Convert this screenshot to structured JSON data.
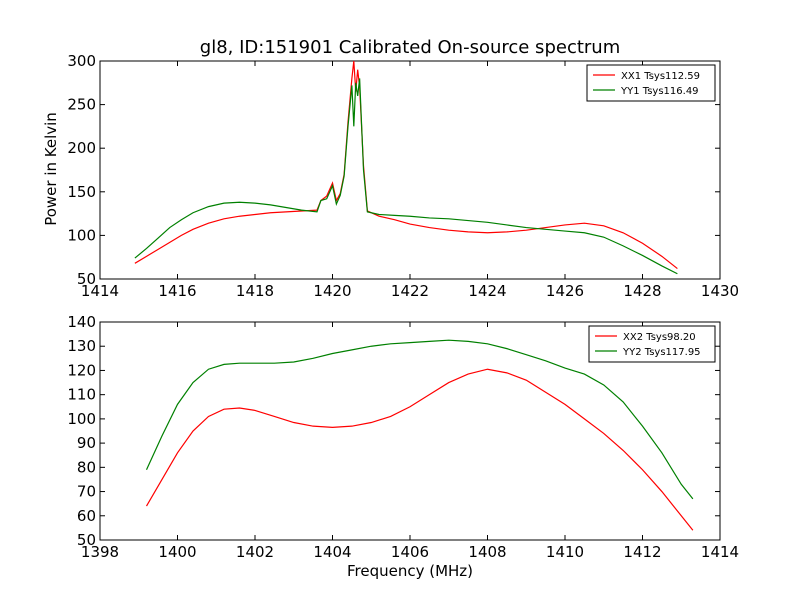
{
  "chart_data": [
    {
      "type": "line",
      "title": "gl8, ID:151901 Calibrated On-source spectrum",
      "xlabel": "",
      "ylabel": "Power in Kelvin",
      "xlim": [
        1414,
        1430
      ],
      "ylim": [
        50,
        300
      ],
      "xticks": [
        "1414",
        "1416",
        "1418",
        "1420",
        "1422",
        "1424",
        "1426",
        "1428",
        "1430"
      ],
      "yticks": [
        "50",
        "100",
        "150",
        "200",
        "250",
        "300"
      ],
      "legend_position": "top-right",
      "series": [
        {
          "name": "XX1 Tsys112.59",
          "color": "#ff0000",
          "x": [
            1414.9,
            1415.2,
            1415.5,
            1415.8,
            1416.1,
            1416.4,
            1416.8,
            1417.2,
            1417.6,
            1418.0,
            1418.4,
            1418.8,
            1419.2,
            1419.6,
            1419.7,
            1419.85,
            1420.0,
            1420.1,
            1420.2,
            1420.3,
            1420.4,
            1420.5,
            1420.55,
            1420.6,
            1420.65,
            1420.7,
            1420.8,
            1420.9,
            1421.2,
            1421.6,
            1422.0,
            1422.5,
            1423.0,
            1423.5,
            1424.0,
            1424.5,
            1425.0,
            1425.5,
            1426.0,
            1426.5,
            1427.0,
            1427.5,
            1428.0,
            1428.5,
            1428.9
          ],
          "y": [
            68,
            76,
            84,
            92,
            100,
            107,
            114,
            119,
            122,
            124,
            126,
            127,
            128,
            129,
            140,
            145,
            160,
            140,
            148,
            170,
            230,
            280,
            300,
            265,
            290,
            270,
            180,
            128,
            122,
            118,
            113,
            109,
            106,
            104,
            103,
            104,
            106,
            109,
            112,
            114,
            111,
            103,
            91,
            76,
            62
          ]
        },
        {
          "name": "YY1 Tsys116.49",
          "color": "#008000",
          "x": [
            1414.9,
            1415.2,
            1415.5,
            1415.8,
            1416.1,
            1416.4,
            1416.8,
            1417.2,
            1417.6,
            1418.0,
            1418.4,
            1418.8,
            1419.2,
            1419.6,
            1419.7,
            1419.85,
            1420.0,
            1420.1,
            1420.2,
            1420.3,
            1420.4,
            1420.5,
            1420.55,
            1420.6,
            1420.65,
            1420.7,
            1420.8,
            1420.9,
            1421.2,
            1421.6,
            1422.0,
            1422.5,
            1423.0,
            1423.5,
            1424.0,
            1424.5,
            1425.0,
            1425.5,
            1426.0,
            1426.5,
            1427.0,
            1427.5,
            1428.0,
            1428.5,
            1428.9
          ],
          "y": [
            74,
            85,
            97,
            109,
            118,
            126,
            133,
            137,
            138,
            137,
            135,
            132,
            129,
            127,
            140,
            142,
            157,
            136,
            146,
            168,
            225,
            272,
            225,
            275,
            260,
            280,
            175,
            127,
            124,
            123,
            122,
            120,
            119,
            117,
            115,
            112,
            109,
            107,
            105,
            103,
            98,
            88,
            77,
            65,
            56
          ]
        }
      ]
    },
    {
      "type": "line",
      "title": "",
      "xlabel": "Frequency (MHz)",
      "ylabel": "",
      "xlim": [
        1398,
        1414
      ],
      "ylim": [
        50,
        140
      ],
      "xticks": [
        "1398",
        "1400",
        "1402",
        "1404",
        "1406",
        "1408",
        "1410",
        "1412",
        "1414"
      ],
      "yticks": [
        "50",
        "60",
        "70",
        "80",
        "90",
        "100",
        "110",
        "120",
        "130",
        "140"
      ],
      "legend_position": "top-right",
      "series": [
        {
          "name": "XX2 Tsys98.20",
          "color": "#ff0000",
          "x": [
            1399.2,
            1399.6,
            1400.0,
            1400.4,
            1400.8,
            1401.2,
            1401.6,
            1402.0,
            1402.5,
            1403.0,
            1403.5,
            1404.0,
            1404.5,
            1405.0,
            1405.5,
            1406.0,
            1406.5,
            1407.0,
            1407.5,
            1408.0,
            1408.5,
            1409.0,
            1409.5,
            1410.0,
            1410.5,
            1411.0,
            1411.5,
            1412.0,
            1412.5,
            1413.0,
            1413.3
          ],
          "y": [
            64,
            75,
            86,
            95,
            101,
            104,
            104.5,
            103.5,
            101,
            98.5,
            97,
            96.5,
            97,
            98.5,
            101,
            105,
            110,
            115,
            118.5,
            120.5,
            119,
            116,
            111,
            106,
            100,
            94,
            87,
            79,
            70,
            60,
            54
          ]
        },
        {
          "name": "YY2 Tsys117.95",
          "color": "#008000",
          "x": [
            1399.2,
            1399.6,
            1400.0,
            1400.4,
            1400.8,
            1401.2,
            1401.6,
            1402.0,
            1402.5,
            1403.0,
            1403.5,
            1404.0,
            1404.5,
            1405.0,
            1405.5,
            1406.0,
            1406.5,
            1407.0,
            1407.5,
            1408.0,
            1408.5,
            1409.0,
            1409.5,
            1410.0,
            1410.5,
            1411.0,
            1411.5,
            1412.0,
            1412.5,
            1413.0,
            1413.3
          ],
          "y": [
            79,
            93,
            106,
            115,
            120.5,
            122.5,
            123,
            123,
            123,
            123.5,
            125,
            127,
            128.5,
            130,
            131,
            131.5,
            132,
            132.5,
            132,
            131,
            129,
            126.5,
            124,
            121,
            118.5,
            114,
            107,
            97,
            86,
            73,
            67
          ]
        }
      ]
    }
  ]
}
